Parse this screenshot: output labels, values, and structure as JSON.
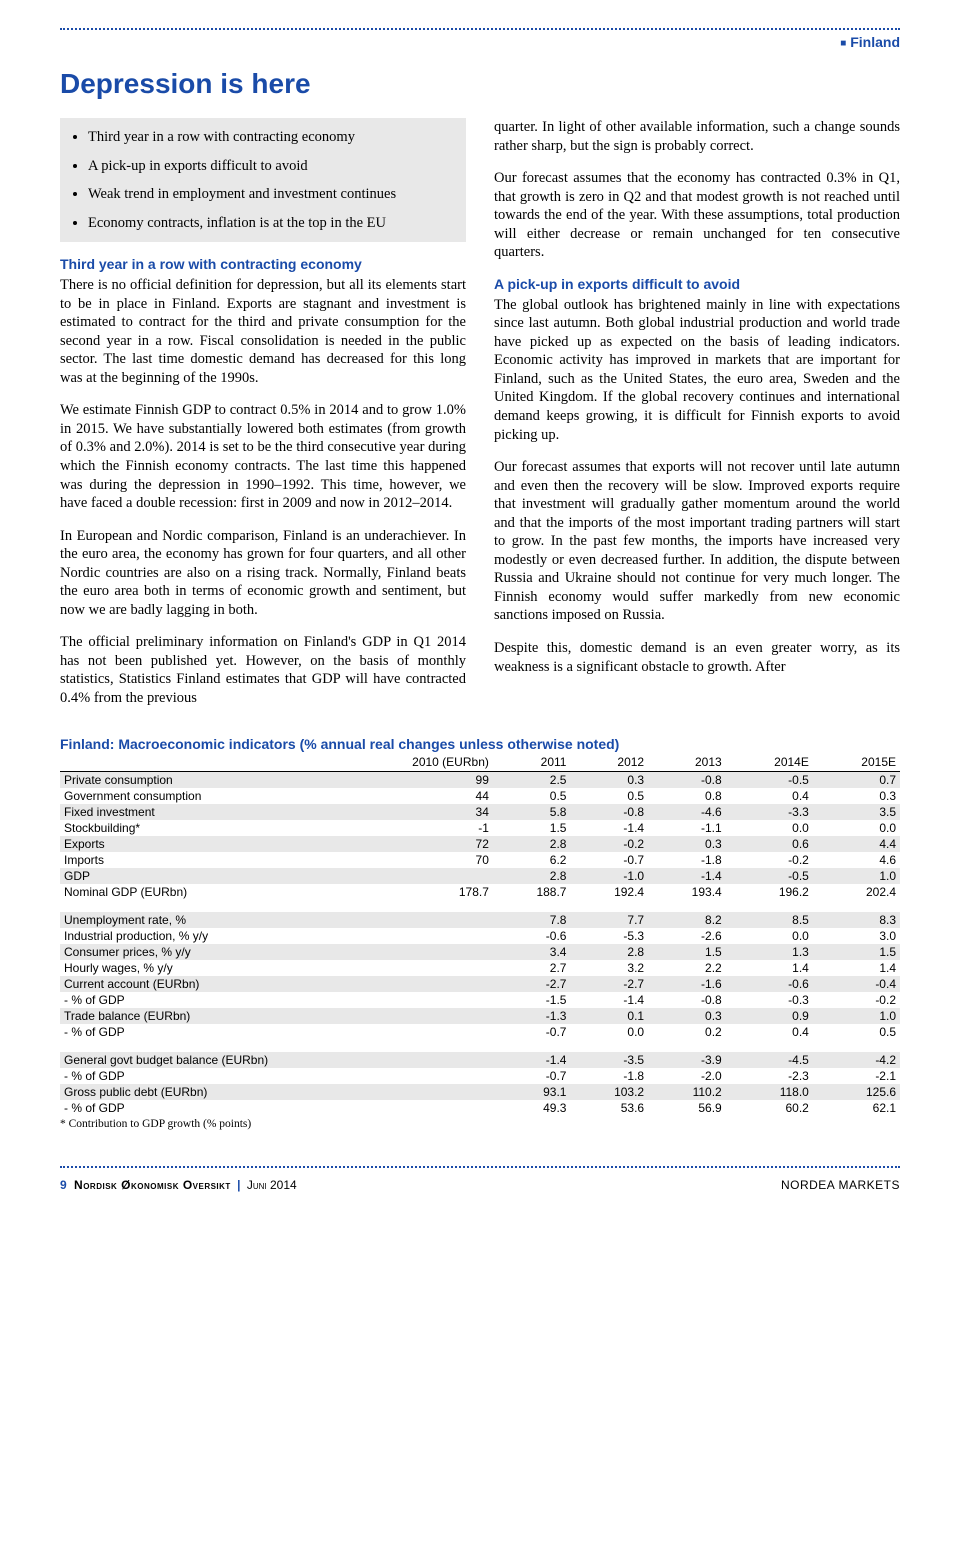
{
  "header": {
    "brand": "Finland"
  },
  "title": "Depression is here",
  "bullets": [
    "Third year in a row with contracting economy",
    "A pick-up in exports difficult to avoid",
    "Weak trend in employment and investment continues",
    "Economy contracts, inflation is at the top in the EU"
  ],
  "left": {
    "h1": "Third year in a row with contracting economy",
    "p1": "There is no official definition for depression, but all its elements start to be in place in Finland. Exports are stagnant and investment is estimated to contract for the third and private consumption for the second year in a row. Fiscal consolidation is needed in the public sector. The last time domestic demand has decreased for this long was at the beginning of the 1990s.",
    "p2": "We estimate Finnish GDP to contract 0.5% in 2014 and to grow 1.0% in 2015. We have substantially lowered both estimates (from growth of 0.3% and 2.0%). 2014 is set to be the third consecutive year during which the Finnish economy contracts. The last time this happened was during the depression in 1990–1992. This time, however, we have faced a double recession: first in 2009 and now in 2012–2014.",
    "p3": "In European and Nordic comparison, Finland is an underachiever. In the euro area, the economy has grown for four quarters, and all other Nordic countries are also on a rising track. Normally, Finland beats the euro area both in terms of economic growth and sentiment, but now we are badly lagging in both.",
    "p4": "The official preliminary information on Finland's GDP in Q1 2014 has not been published yet. However, on the basis of monthly statistics, Statistics Finland estimates that GDP will have contracted 0.4% from the previous"
  },
  "right": {
    "p1": "quarter. In light of other available information, such a change sounds rather sharp, but the sign is probably correct.",
    "p2": "Our forecast assumes that the economy has contracted 0.3% in Q1, that growth is zero in Q2 and that modest growth is not reached until towards the end of the year. With these assumptions, total production will either decrease or remain unchanged for ten consecutive quarters.",
    "h2": "A pick-up in exports difficult to avoid",
    "p3": "The global outlook has brightened mainly in line with expectations since last autumn. Both global industrial production and world trade have picked up as expected on the basis of leading indicators. Economic activity has improved in markets that are important for Finland, such as the United States, the euro area, Sweden and the United Kingdom. If the global recovery continues and international demand keeps growing, it is difficult for Finnish exports to avoid picking up.",
    "p4": "Our forecast assumes that exports will not recover until late autumn and even then the recovery will be slow. Improved exports require that investment will gradually gather momentum around the world and that the imports of the most important trading partners will start to grow. In the past few months, the imports have increased very modestly or even decreased further. In addition, the dispute between Russia and Ukraine should not continue for very much longer. The Finnish economy would suffer markedly from new economic sanctions imposed on Russia.",
    "p5": "Despite this, domestic demand is an even greater worry, as its weakness is a significant obstacle to growth. After"
  },
  "table": {
    "title": "Finland: Macroeconomic indicators (% annual real changes unless otherwise noted)",
    "columns": [
      "",
      "2010 (EURbn)",
      "2011",
      "2012",
      "2013",
      "2014E",
      "2015E"
    ],
    "block1": [
      [
        "Private consumption",
        "99",
        "2.5",
        "0.3",
        "-0.8",
        "-0.5",
        "0.7",
        true
      ],
      [
        "Government consumption",
        "44",
        "0.5",
        "0.5",
        "0.8",
        "0.4",
        "0.3",
        false
      ],
      [
        "Fixed investment",
        "34",
        "5.8",
        "-0.8",
        "-4.6",
        "-3.3",
        "3.5",
        true
      ],
      [
        "Stockbuilding*",
        "-1",
        "1.5",
        "-1.4",
        "-1.1",
        "0.0",
        "0.0",
        false
      ],
      [
        "Exports",
        "72",
        "2.8",
        "-0.2",
        "0.3",
        "0.6",
        "4.4",
        true
      ],
      [
        "Imports",
        "70",
        "6.2",
        "-0.7",
        "-1.8",
        "-0.2",
        "4.6",
        false
      ],
      [
        "GDP",
        "",
        "2.8",
        "-1.0",
        "-1.4",
        "-0.5",
        "1.0",
        true
      ],
      [
        "Nominal GDP (EURbn)",
        "178.7",
        "188.7",
        "192.4",
        "193.4",
        "196.2",
        "202.4",
        false
      ]
    ],
    "block2": [
      [
        "Unemployment rate, %",
        "",
        "7.8",
        "7.7",
        "8.2",
        "8.5",
        "8.3",
        true
      ],
      [
        "Industrial production, % y/y",
        "",
        "-0.6",
        "-5.3",
        "-2.6",
        "0.0",
        "3.0",
        false
      ],
      [
        "Consumer prices, % y/y",
        "",
        "3.4",
        "2.8",
        "1.5",
        "1.3",
        "1.5",
        true
      ],
      [
        "Hourly wages, % y/y",
        "",
        "2.7",
        "3.2",
        "2.2",
        "1.4",
        "1.4",
        false
      ],
      [
        "Current account (EURbn)",
        "",
        "-2.7",
        "-2.7",
        "-1.6",
        "-0.6",
        "-0.4",
        true
      ],
      [
        " - % of GDP",
        "",
        "-1.5",
        "-1.4",
        "-0.8",
        "-0.3",
        "-0.2",
        false
      ],
      [
        "Trade balance (EURbn)",
        "",
        "-1.3",
        "0.1",
        "0.3",
        "0.9",
        "1.0",
        true
      ],
      [
        " - % of GDP",
        "",
        "-0.7",
        "0.0",
        "0.2",
        "0.4",
        "0.5",
        false
      ]
    ],
    "block3": [
      [
        "General govt budget balance (EURbn)",
        "",
        "-1.4",
        "-3.5",
        "-3.9",
        "-4.5",
        "-4.2",
        true
      ],
      [
        " - % of GDP",
        "",
        "-0.7",
        "-1.8",
        "-2.0",
        "-2.3",
        "-2.1",
        false
      ],
      [
        "Gross public debt (EURbn)",
        "",
        "93.1",
        "103.2",
        "110.2",
        "118.0",
        "125.6",
        true
      ],
      [
        " - % of GDP",
        "",
        "49.3",
        "53.6",
        "56.9",
        "60.2",
        "62.1",
        false
      ]
    ],
    "footnote": "* Contribution to GDP growth (% points)"
  },
  "footer": {
    "page": "9",
    "pub": "Nordisk Økonomisk Oversikt",
    "date": "Juni 2014",
    "right": "NORDEA MARKETS"
  }
}
